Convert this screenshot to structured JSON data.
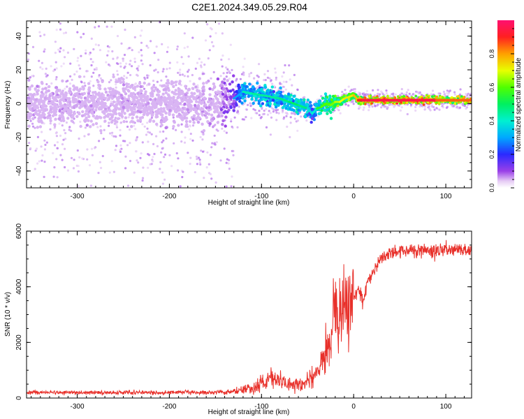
{
  "figure_title": "C2E1.2024.349.05.29.R04",
  "colors": {
    "snr_line": "#e8302a",
    "low_amplitude": "#d8b8f0",
    "axis": "#000000"
  },
  "chart_data": [
    {
      "type": "heatmap",
      "title": "",
      "xlabel": "Height of straight line (km)",
      "ylabel": "Frequency (Hz)",
      "xlim": [
        -355,
        128
      ],
      "ylim": [
        -50,
        49
      ],
      "x_ticks": [
        -300,
        -200,
        -100,
        0,
        100
      ],
      "y_ticks": [
        -40,
        -20,
        0,
        20,
        40
      ],
      "x_tick_labels": [
        "-300",
        "-200",
        "-100",
        "0",
        "100"
      ],
      "y_tick_labels": [
        "-40",
        "-20",
        "0",
        "20",
        "40"
      ],
      "colorbar": {
        "label": "Normalized spectral amplitude",
        "range": [
          0,
          1
        ],
        "ticks": [
          0.0,
          0.2,
          0.4,
          0.6,
          0.8
        ],
        "tick_labels": [
          "0.0",
          "0.2",
          "0.4",
          "0.6",
          "0.8"
        ],
        "colormap": "rainbow (white/violet → blue → cyan → green → yellow → red → magenta)"
      },
      "ridge": {
        "description": "dominant frequency vs height",
        "x": [
          -355,
          -300,
          -250,
          -200,
          -150,
          -130,
          -120,
          -110,
          -100,
          -90,
          -80,
          -70,
          -60,
          -50,
          -45,
          -40,
          -35,
          -30,
          -25,
          -20,
          -15,
          -10,
          -5,
          0,
          5,
          10,
          50,
          90,
          100,
          128
        ],
        "freq": [
          0,
          0,
          0,
          0,
          0,
          3,
          7,
          6,
          5,
          4,
          3,
          1,
          -1,
          -3,
          -6,
          -3,
          -2,
          0,
          -1,
          1,
          1,
          3,
          4,
          5,
          2,
          2,
          2,
          2,
          2,
          2
        ],
        "amplitude": [
          0.08,
          0.08,
          0.08,
          0.08,
          0.09,
          0.2,
          0.4,
          0.45,
          0.45,
          0.45,
          0.45,
          0.5,
          0.5,
          0.45,
          0.3,
          0.5,
          0.6,
          0.6,
          0.6,
          0.65,
          0.7,
          0.7,
          0.75,
          0.7,
          0.85,
          0.95,
          0.95,
          0.95,
          0.75,
          0.95
        ]
      }
    },
    {
      "type": "line",
      "title": "",
      "xlabel": "Height of straight line (km)",
      "ylabel": "SNR (10 * v/v)",
      "xlim": [
        -355,
        128
      ],
      "ylim": [
        0,
        6000
      ],
      "x_ticks": [
        -300,
        -200,
        -100,
        0,
        100
      ],
      "y_ticks": [
        0,
        2000,
        4000,
        6000
      ],
      "x_tick_labels": [
        "-300",
        "-200",
        "-100",
        "0",
        "100"
      ],
      "y_tick_labels": [
        "0",
        "2000",
        "4000",
        "6000"
      ],
      "series": [
        {
          "x": [
            -355,
            -300,
            -250,
            -200,
            -150,
            -130,
            -120,
            -110,
            -100,
            -90,
            -80,
            -70,
            -60,
            -50,
            -40,
            -30,
            -25,
            -20,
            -15,
            -10,
            -5,
            0,
            5,
            10,
            15,
            20,
            25,
            30,
            40,
            50,
            60,
            70,
            80,
            90,
            100,
            110,
            120,
            128
          ],
          "y": [
            200,
            200,
            200,
            200,
            200,
            250,
            300,
            350,
            500,
            700,
            600,
            500,
            500,
            600,
            900,
            1700,
            2300,
            3000,
            2800,
            3400,
            3500,
            3600,
            3900,
            3500,
            4200,
            4500,
            4800,
            5000,
            5200,
            5300,
            5300,
            5350,
            5300,
            5250,
            5400,
            5300,
            5300,
            5300
          ]
        }
      ]
    }
  ]
}
